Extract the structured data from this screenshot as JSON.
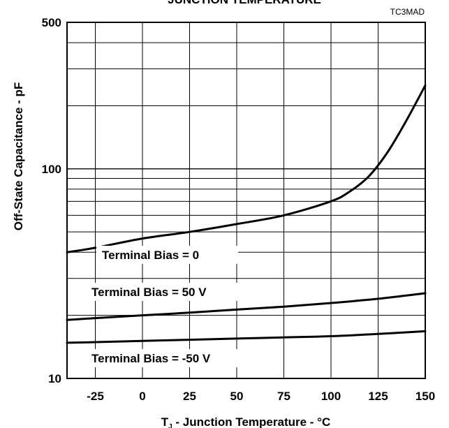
{
  "chart_data": {
    "type": "line",
    "title": "JUNCTION TEMPERATURE",
    "figure_code": "TC3MAD",
    "xlabel_main": "T",
    "xlabel_sub": "J",
    "xlabel_rest": " - Junction Temperature - °C",
    "ylabel": "Off-State Capacitance - pF",
    "xlim": [
      -40,
      150
    ],
    "ylim": [
      10,
      500
    ],
    "yscale": "log",
    "grid": true,
    "x_ticks": [
      -25,
      0,
      25,
      50,
      75,
      100,
      125,
      150
    ],
    "x_tick_labels": [
      "-25",
      "0",
      "25",
      "50",
      "75",
      "100",
      "125",
      "150"
    ],
    "y_ticks": [
      10,
      100,
      500
    ],
    "y_tick_labels": [
      "10",
      "100",
      "500"
    ],
    "series": [
      {
        "name": "Terminal Bias = 0",
        "x": [
          -40,
          -25,
          0,
          25,
          50,
          75,
          100,
          110,
          120,
          130,
          140,
          150
        ],
        "y": [
          40,
          42,
          46.5,
          50,
          54.5,
          60,
          70,
          78,
          92,
          120,
          170,
          250
        ]
      },
      {
        "name": "Terminal Bias = 50 V",
        "x": [
          -40,
          -25,
          0,
          25,
          50,
          75,
          100,
          125,
          150
        ],
        "y": [
          19,
          19.4,
          20,
          20.6,
          21.3,
          22,
          22.9,
          24,
          25.5
        ]
      },
      {
        "name": "Terminal Bias = -50 V",
        "x": [
          -40,
          -25,
          0,
          25,
          50,
          75,
          100,
          125,
          150
        ],
        "y": [
          14.8,
          14.9,
          15.1,
          15.3,
          15.5,
          15.7,
          15.9,
          16.3,
          16.8
        ]
      }
    ]
  }
}
